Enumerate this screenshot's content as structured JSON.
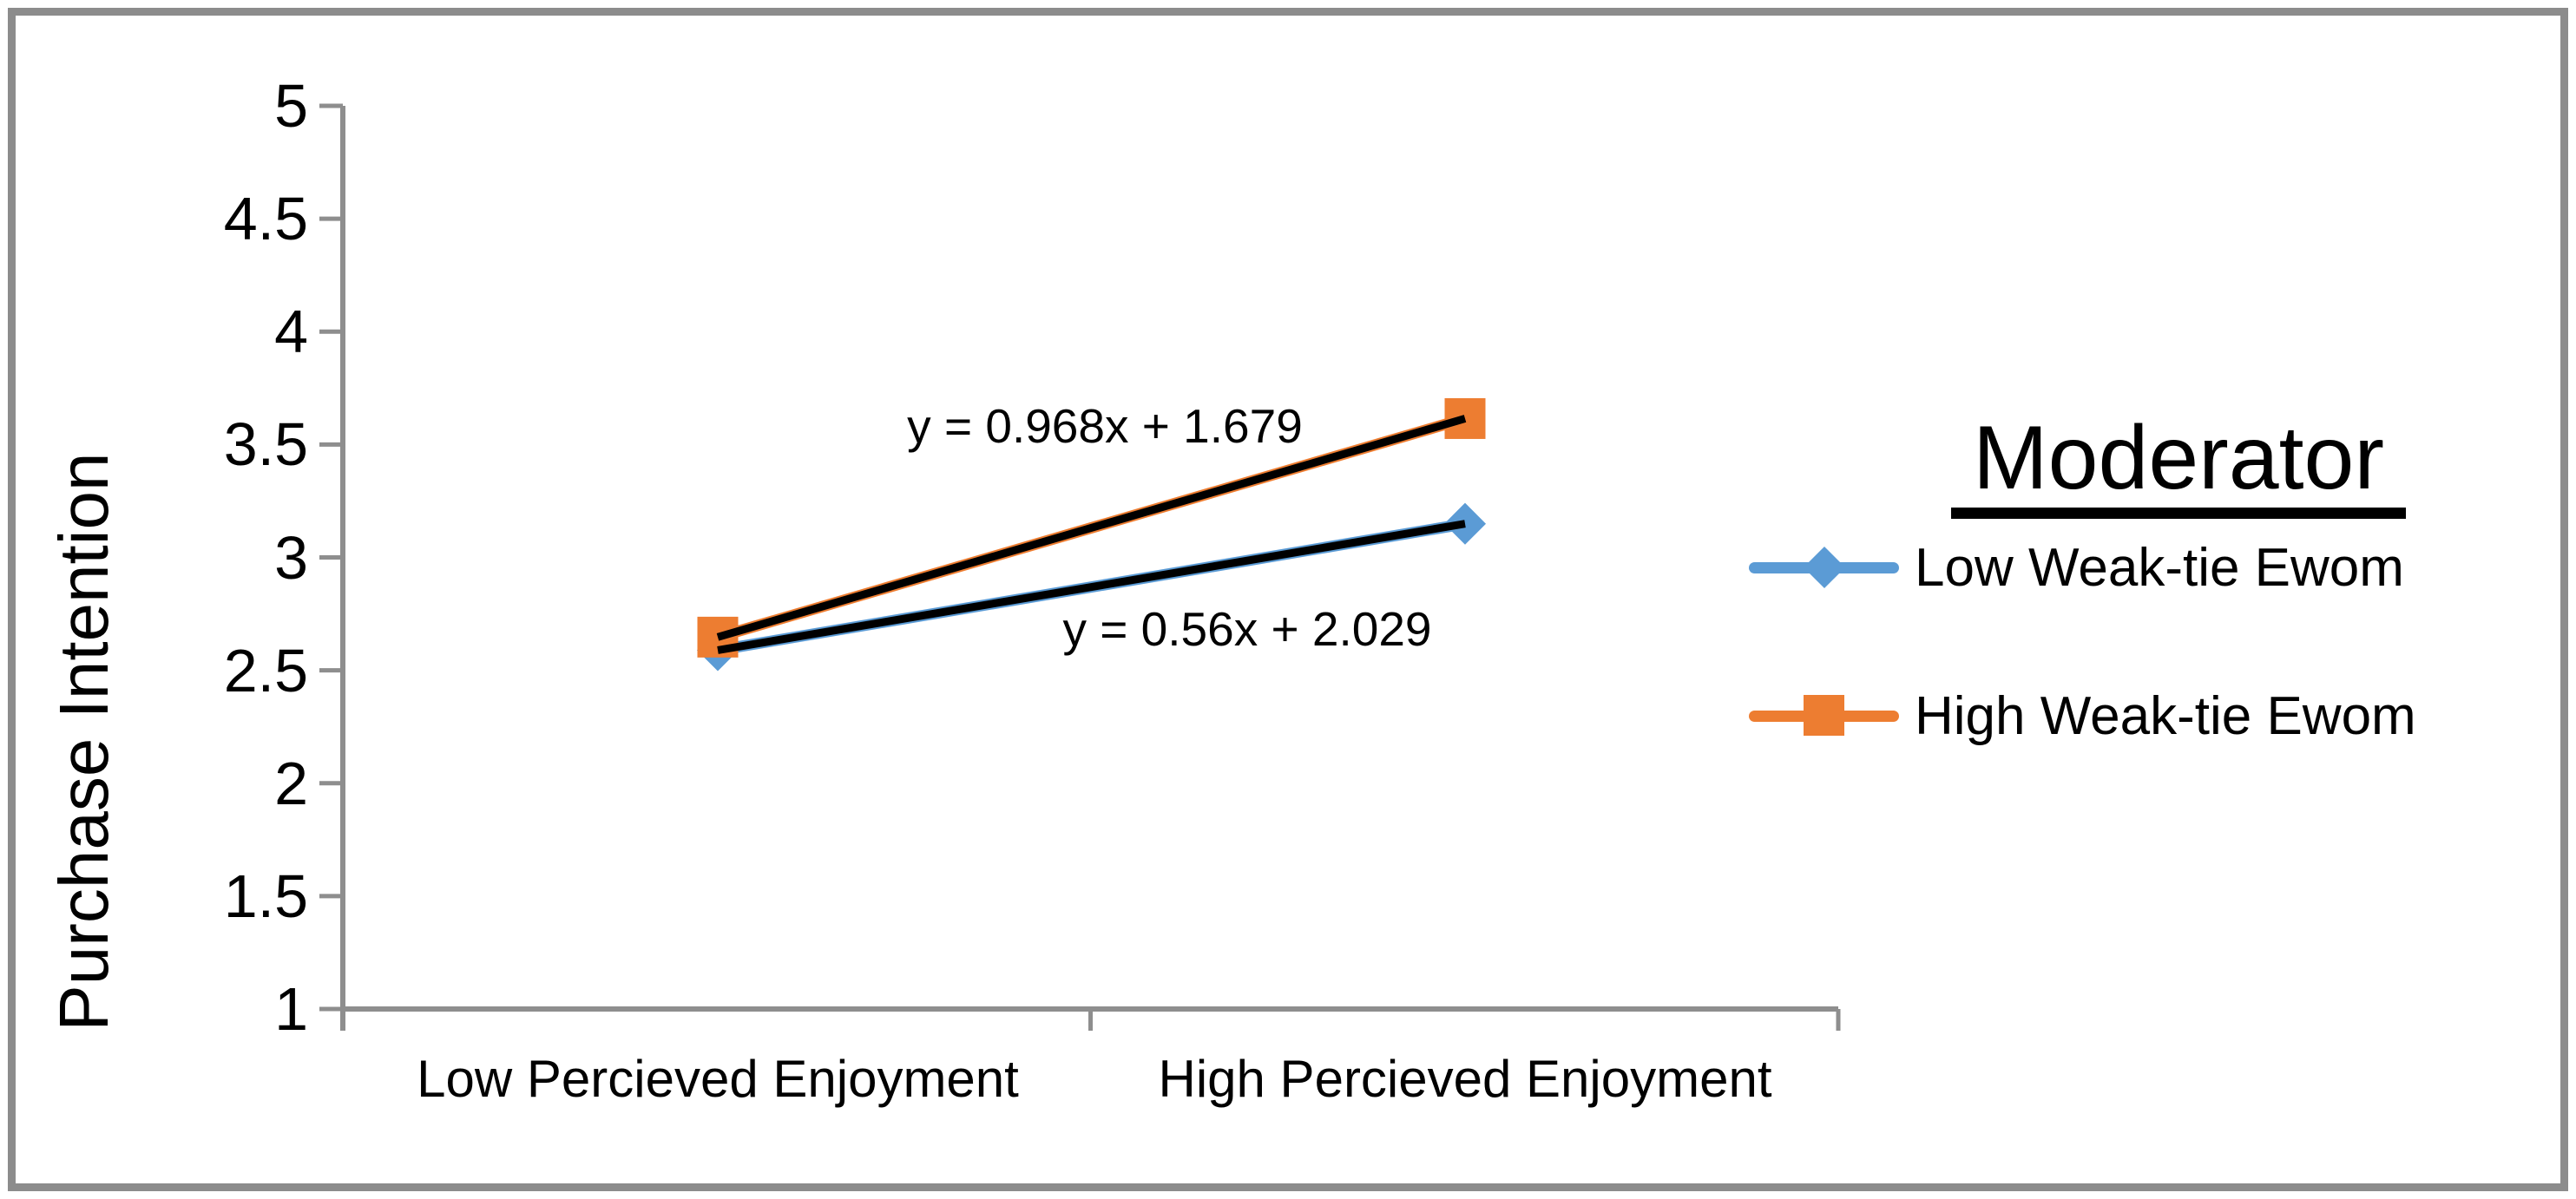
{
  "figure": {
    "background": "#FFFFFF",
    "border_color": "#8C8C8C",
    "axis_color": "#8E8E8E",
    "text_color": "#000000"
  },
  "chart_data": {
    "type": "line",
    "title": "",
    "xlabel": "",
    "ylabel": "Purchase Intention",
    "categories": [
      "Low Percieved Enjoyment",
      "High Percieved Enjoyment"
    ],
    "series": [
      {
        "name": "Low Weak-tie Ewom",
        "color": "#5B9BD5",
        "marker": "diamond",
        "values": [
          2.589,
          3.149
        ],
        "trendline": {
          "equation": "y = 0.56x + 2.029",
          "color": "#000000"
        }
      },
      {
        "name": "High Weak-tie Ewom",
        "color": "#ED7D31",
        "marker": "square",
        "values": [
          2.647,
          3.615
        ],
        "trendline": {
          "equation": "y = 0.968x + 1.679",
          "color": "#000000"
        }
      }
    ],
    "ylim": [
      1,
      5
    ],
    "y_tick_step": 0.5,
    "y_tick_labels": [
      "5",
      "4.5",
      "4",
      "3.5",
      "3",
      "2.5",
      "2",
      "1.5",
      "1"
    ],
    "grid": false,
    "legend": {
      "position": "right",
      "title": "Moderator",
      "items": [
        {
          "label": "Low Weak-tie Ewom",
          "color": "#5B9BD5",
          "marker": "diamond"
        },
        {
          "label": "High Weak-tie Ewom",
          "color": "#ED7D31",
          "marker": "square"
        }
      ]
    }
  }
}
